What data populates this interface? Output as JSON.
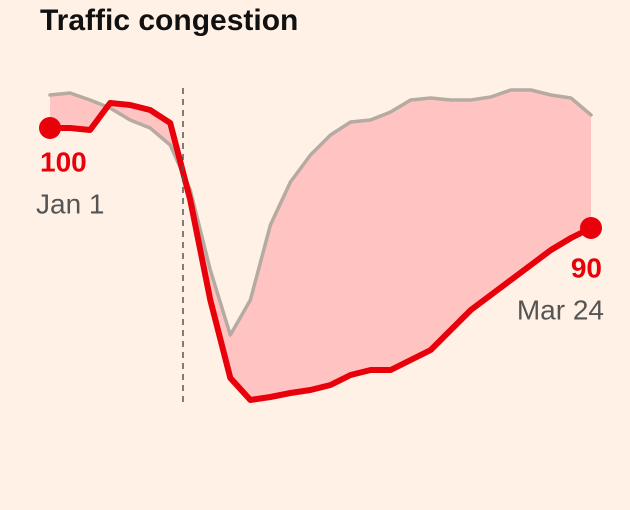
{
  "chart_data": {
    "type": "line",
    "title": "Traffic congestion",
    "categories": [
      "Jan 1",
      null,
      null,
      null,
      null,
      null,
      null,
      null,
      null,
      null,
      null,
      null,
      null,
      null,
      null,
      null,
      null,
      null,
      null,
      null,
      null,
      null,
      null,
      null,
      null,
      null,
      null,
      "Mar 24"
    ],
    "series": [
      {
        "color": "#e8000b",
        "values": [
          100,
          100,
          99.8,
          102.5,
          102.3,
          101.8,
          100.5,
          92.8,
          82.8,
          75,
          72.8,
          73.1,
          73.5,
          73.8,
          74.3,
          75.3,
          75.8,
          75.8,
          76.8,
          77.8,
          79.8,
          81.8,
          83.3,
          84.8,
          86.3,
          87.8,
          89,
          90
        ],
        "value_labels": [
          "100",
          null,
          null,
          null,
          null,
          null,
          null,
          null,
          null,
          null,
          null,
          null,
          null,
          null,
          null,
          null,
          null,
          null,
          null,
          null,
          null,
          null,
          null,
          null,
          null,
          null,
          null,
          "90"
        ]
      },
      {
        "color": "#b5aba2",
        "values": [
          103.3,
          103.5,
          102.8,
          102,
          100.8,
          100,
          98.3,
          93.8,
          85.8,
          79.3,
          82.8,
          90.3,
          94.6,
          97.3,
          99.3,
          100.6,
          100.8,
          101.6,
          102.8,
          103,
          102.8,
          102.8,
          103.1,
          103.8,
          103.8,
          103.3,
          103,
          101.3
        ]
      }
    ],
    "fill_color": "#ffc4c2"
  }
}
